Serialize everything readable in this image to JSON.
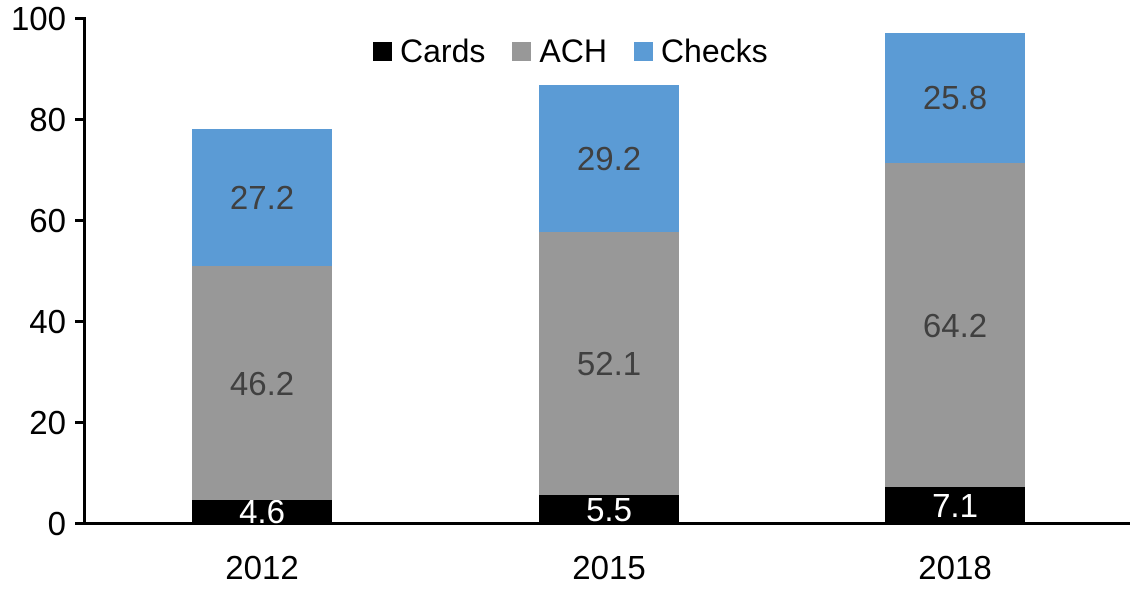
{
  "chart_data": {
    "type": "bar",
    "stacked": true,
    "title": "",
    "xlabel": "",
    "ylabel": "",
    "categories": [
      "2012",
      "2015",
      "2018"
    ],
    "series": [
      {
        "name": "Cards",
        "color": "#000000",
        "label_color": "#ffffff",
        "values": [
          4.6,
          5.5,
          7.1
        ]
      },
      {
        "name": "ACH",
        "color": "#989898",
        "label_color": "#404040",
        "values": [
          46.2,
          52.1,
          64.2
        ]
      },
      {
        "name": "Checks",
        "color": "#5b9bd5",
        "label_color": "#404040",
        "values": [
          27.2,
          29.2,
          25.8
        ]
      }
    ],
    "totals": [
      78.0,
      86.8,
      97.1
    ],
    "ylim": [
      0,
      100
    ],
    "yticks": [
      0,
      20,
      40,
      60,
      80,
      100
    ],
    "grid": false,
    "data_labels": true,
    "legend_position": "top-center",
    "axis_color": "#000000"
  }
}
